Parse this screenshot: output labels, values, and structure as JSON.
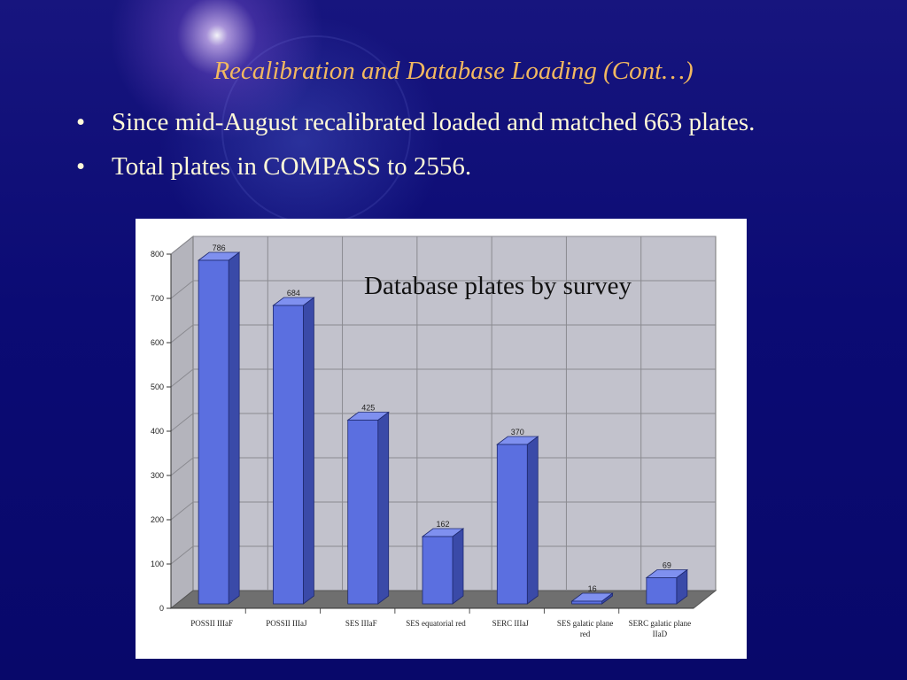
{
  "slide": {
    "title": "Recalibration and Database Loading (Cont…)",
    "bullet_symbol": "•",
    "bullets": [
      "Since mid-August recalibrated loaded and matched 663 plates.",
      "Total plates in COMPASS to 2556."
    ]
  },
  "chart_data": {
    "type": "bar",
    "title": "Database plates by survey",
    "categories": [
      "POSSII IIIaF",
      "POSSII IIIaJ",
      "SES IIIaF",
      "SES equatorial red",
      "SERC IIIaJ",
      "SES galatic plane red",
      "SERC galatic plane IIaD"
    ],
    "category_lines": [
      [
        "POSSII IIIaF"
      ],
      [
        "POSSII IIIaJ"
      ],
      [
        "SES IIIaF"
      ],
      [
        "SES equatorial red"
      ],
      [
        "SERC IIIaJ"
      ],
      [
        "SES galatic plane",
        "red"
      ],
      [
        "SERC galatic plane",
        "IIaD"
      ]
    ],
    "values": [
      786,
      684,
      425,
      162,
      370,
      16,
      69
    ],
    "ylim": [
      0,
      800
    ],
    "yticks": [
      0,
      100,
      200,
      300,
      400,
      500,
      600,
      700,
      800
    ],
    "xlabel": "",
    "ylabel": "",
    "grid": true,
    "style": "3d",
    "colors": {
      "bar_front": "#5b6fe0",
      "bar_side": "#3a4aa8",
      "bar_top": "#7f90ef",
      "wall": "#c2c2cc",
      "floor": "#6f6f6f",
      "grid": "#8a8a90"
    }
  }
}
